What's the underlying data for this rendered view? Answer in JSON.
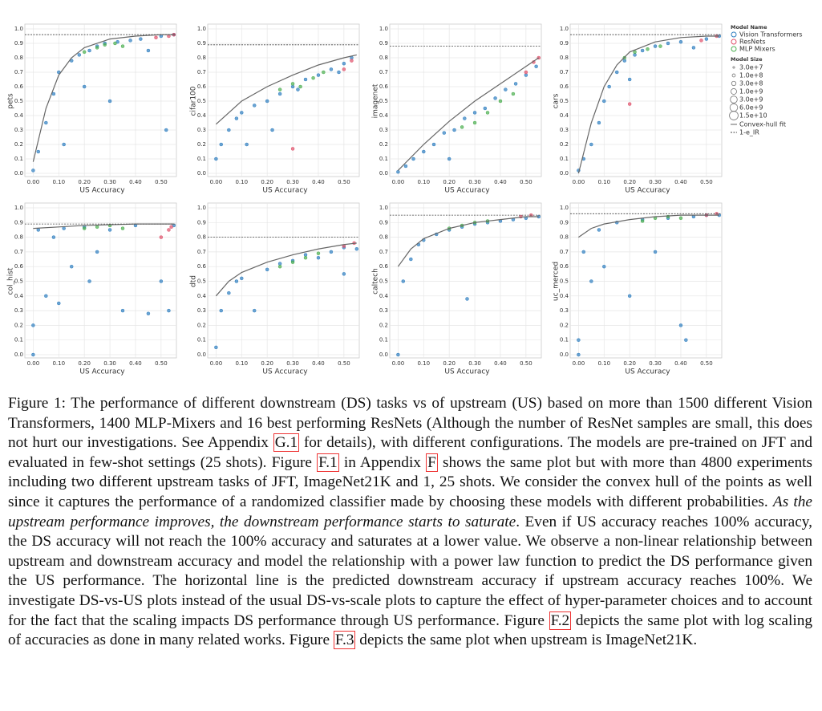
{
  "axes": {
    "x_label": "US Accuracy",
    "xlim": [
      -0.02,
      0.56
    ],
    "ylim": [
      0,
      1
    ],
    "xticks": [
      {
        "value": 0,
        "label": "0.00"
      },
      {
        "value": 0.1,
        "label": "0.10"
      },
      {
        "value": 0.2,
        "label": "0.20"
      },
      {
        "value": 0.3,
        "label": "0.30"
      },
      {
        "value": 0.4,
        "label": "0.40"
      },
      {
        "value": 0.5,
        "label": "0.50"
      }
    ],
    "yticks": [
      {
        "value": 0,
        "label": "0.0"
      },
      0.1,
      0.2,
      0.3,
      0.4,
      0.5,
      0.6,
      0.7,
      0.8,
      0.9,
      {
        "value": 1,
        "label": "1.0"
      }
    ],
    "grid": true
  },
  "legend": {
    "title": "Model Name",
    "series": [
      {
        "name": "Vision Transformers",
        "color": "#2f7fc1"
      },
      {
        "name": "ResNets",
        "color": "#e0506a"
      },
      {
        "name": "MLP Mixers",
        "color": "#4caf50"
      }
    ],
    "size_title": "Model Size",
    "sizes": [
      {
        "value": 30000000,
        "label": "3.0e+7"
      },
      {
        "value": 100000000,
        "label": "1.0e+8"
      },
      {
        "value": 300000000,
        "label": "3.0e+8"
      },
      {
        "value": 1000000000,
        "label": "1.0e+9"
      },
      {
        "value": 3000000000,
        "label": "3.0e+9"
      },
      {
        "value": 6000000000,
        "label": "6.0e+9"
      },
      {
        "value": 15000000000,
        "label": "1.5e+10"
      }
    ],
    "fit_label": "Convex-hull fit",
    "hline_label": "1-e_IR"
  },
  "chart_data": [
    {
      "type": "scatter",
      "y_label": "pets",
      "saturation": 0.96,
      "fit": {
        "x": [
          0,
          0.05,
          0.1,
          0.15,
          0.2,
          0.3,
          0.4,
          0.5,
          0.55
        ],
        "values": [
          0.08,
          0.45,
          0.68,
          0.8,
          0.87,
          0.93,
          0.95,
          0.96,
          0.96
        ]
      },
      "series": [
        {
          "x": [
            0,
            0.02,
            0.05,
            0.08,
            0.1,
            0.12,
            0.15,
            0.18,
            0.2,
            0.22,
            0.25,
            0.28,
            0.3,
            0.33,
            0.38,
            0.42,
            0.45,
            0.5,
            0.52,
            0.55
          ],
          "values": [
            0.02,
            0.15,
            0.35,
            0.55,
            0.7,
            0.2,
            0.78,
            0.82,
            0.6,
            0.85,
            0.88,
            0.9,
            0.5,
            0.91,
            0.92,
            0.93,
            0.85,
            0.95,
            0.3,
            0.96
          ]
        },
        {
          "x": [
            0.48,
            0.53,
            0.55
          ],
          "values": [
            0.94,
            0.95,
            0.96
          ]
        },
        {
          "x": [
            0.2,
            0.25,
            0.28,
            0.32,
            0.35
          ],
          "values": [
            0.84,
            0.87,
            0.89,
            0.9,
            0.88
          ]
        }
      ]
    },
    {
      "type": "scatter",
      "y_label": "cifar100",
      "saturation": 0.89,
      "fit": {
        "x": [
          0,
          0.05,
          0.1,
          0.2,
          0.3,
          0.4,
          0.5,
          0.55
        ],
        "values": [
          0.34,
          0.42,
          0.5,
          0.6,
          0.68,
          0.75,
          0.8,
          0.82
        ]
      },
      "series": [
        {
          "x": [
            0,
            0.02,
            0.05,
            0.08,
            0.1,
            0.12,
            0.15,
            0.2,
            0.22,
            0.25,
            0.3,
            0.32,
            0.35,
            0.4,
            0.45,
            0.48,
            0.5,
            0.53
          ],
          "values": [
            0.1,
            0.2,
            0.3,
            0.38,
            0.42,
            0.2,
            0.47,
            0.5,
            0.3,
            0.55,
            0.6,
            0.58,
            0.65,
            0.68,
            0.72,
            0.7,
            0.76,
            0.8
          ]
        },
        {
          "x": [
            0.3,
            0.5,
            0.53
          ],
          "values": [
            0.17,
            0.72,
            0.78
          ]
        },
        {
          "x": [
            0.25,
            0.3,
            0.33,
            0.38,
            0.42
          ],
          "values": [
            0.58,
            0.62,
            0.6,
            0.66,
            0.7
          ]
        }
      ]
    },
    {
      "type": "scatter",
      "y_label": "imagenet",
      "saturation": 0.88,
      "fit": {
        "x": [
          0,
          0.1,
          0.2,
          0.3,
          0.4,
          0.5,
          0.55
        ],
        "values": [
          0.02,
          0.2,
          0.36,
          0.5,
          0.62,
          0.74,
          0.8
        ]
      },
      "series": [
        {
          "x": [
            0,
            0.03,
            0.06,
            0.1,
            0.14,
            0.18,
            0.22,
            0.26,
            0.3,
            0.34,
            0.38,
            0.42,
            0.46,
            0.5,
            0.54,
            0.2
          ],
          "values": [
            0.01,
            0.05,
            0.1,
            0.15,
            0.2,
            0.28,
            0.3,
            0.38,
            0.42,
            0.45,
            0.52,
            0.58,
            0.62,
            0.68,
            0.74,
            0.1
          ]
        },
        {
          "x": [
            0.5,
            0.53,
            0.55
          ],
          "values": [
            0.7,
            0.77,
            0.8
          ]
        },
        {
          "x": [
            0.25,
            0.3,
            0.35,
            0.4,
            0.45
          ],
          "values": [
            0.32,
            0.35,
            0.42,
            0.5,
            0.55
          ]
        }
      ]
    },
    {
      "type": "scatter",
      "y_label": "cars",
      "saturation": 0.96,
      "fit": {
        "x": [
          0,
          0.05,
          0.1,
          0.15,
          0.2,
          0.3,
          0.4,
          0.5,
          0.55
        ],
        "values": [
          0,
          0.35,
          0.6,
          0.75,
          0.84,
          0.91,
          0.94,
          0.95,
          0.95
        ]
      },
      "series": [
        {
          "x": [
            0,
            0.02,
            0.05,
            0.08,
            0.1,
            0.12,
            0.15,
            0.18,
            0.2,
            0.22,
            0.25,
            0.3,
            0.35,
            0.4,
            0.45,
            0.5,
            0.55
          ],
          "values": [
            0.02,
            0.1,
            0.2,
            0.35,
            0.5,
            0.6,
            0.7,
            0.78,
            0.65,
            0.82,
            0.85,
            0.88,
            0.9,
            0.91,
            0.87,
            0.93,
            0.95
          ]
        },
        {
          "x": [
            0.2,
            0.48,
            0.54
          ],
          "values": [
            0.48,
            0.92,
            0.95
          ]
        },
        {
          "x": [
            0.18,
            0.22,
            0.27,
            0.32
          ],
          "values": [
            0.8,
            0.84,
            0.86,
            0.88
          ]
        }
      ]
    },
    {
      "type": "scatter",
      "y_label": "col_hist",
      "saturation": 0.89,
      "fit": {
        "x": [
          0,
          0.1,
          0.2,
          0.3,
          0.4,
          0.5,
          0.55
        ],
        "values": [
          0.86,
          0.87,
          0.88,
          0.885,
          0.89,
          0.89,
          0.89
        ]
      },
      "series": [
        {
          "x": [
            0,
            0,
            0.02,
            0.05,
            0.08,
            0.1,
            0.12,
            0.15,
            0.2,
            0.22,
            0.25,
            0.3,
            0.35,
            0.4,
            0.45,
            0.5,
            0.53,
            0.55
          ],
          "values": [
            0,
            0.2,
            0.85,
            0.4,
            0.8,
            0.35,
            0.86,
            0.6,
            0.87,
            0.5,
            0.7,
            0.85,
            0.3,
            0.88,
            0.28,
            0.5,
            0.3,
            0.88
          ]
        },
        {
          "x": [
            0.5,
            0.53,
            0.54
          ],
          "values": [
            0.8,
            0.85,
            0.87
          ]
        },
        {
          "x": [
            0.2,
            0.25,
            0.3,
            0.35
          ],
          "values": [
            0.86,
            0.87,
            0.88,
            0.86
          ]
        }
      ]
    },
    {
      "type": "scatter",
      "y_label": "dtd",
      "saturation": 0.8,
      "fit": {
        "x": [
          0,
          0.05,
          0.1,
          0.2,
          0.3,
          0.4,
          0.5,
          0.55
        ],
        "values": [
          0.4,
          0.5,
          0.56,
          0.63,
          0.68,
          0.72,
          0.75,
          0.76
        ]
      },
      "series": [
        {
          "x": [
            0,
            0.02,
            0.05,
            0.08,
            0.1,
            0.15,
            0.2,
            0.25,
            0.3,
            0.35,
            0.4,
            0.45,
            0.5,
            0.55,
            0.5
          ],
          "values": [
            0.05,
            0.3,
            0.42,
            0.5,
            0.52,
            0.3,
            0.58,
            0.62,
            0.64,
            0.68,
            0.66,
            0.7,
            0.73,
            0.72,
            0.55
          ]
        },
        {
          "x": [
            0.5,
            0.54
          ],
          "values": [
            0.74,
            0.76
          ]
        },
        {
          "x": [
            0.25,
            0.3,
            0.35,
            0.4
          ],
          "values": [
            0.6,
            0.63,
            0.66,
            0.69
          ]
        }
      ]
    },
    {
      "type": "scatter",
      "y_label": "caltech",
      "saturation": 0.95,
      "fit": {
        "x": [
          0,
          0.05,
          0.1,
          0.2,
          0.3,
          0.4,
          0.5,
          0.55
        ],
        "values": [
          0.6,
          0.72,
          0.79,
          0.86,
          0.9,
          0.92,
          0.94,
          0.94
        ]
      },
      "series": [
        {
          "x": [
            0,
            0.02,
            0.05,
            0.08,
            0.1,
            0.15,
            0.2,
            0.25,
            0.27,
            0.3,
            0.35,
            0.4,
            0.45,
            0.5,
            0.55
          ],
          "values": [
            0,
            0.5,
            0.65,
            0.75,
            0.78,
            0.82,
            0.85,
            0.87,
            0.38,
            0.89,
            0.9,
            0.91,
            0.92,
            0.93,
            0.94
          ]
        },
        {
          "x": [
            0.48,
            0.52
          ],
          "values": [
            0.94,
            0.95
          ]
        },
        {
          "x": [
            0.2,
            0.25,
            0.3,
            0.35
          ],
          "values": [
            0.86,
            0.88,
            0.9,
            0.91
          ]
        }
      ]
    },
    {
      "type": "scatter",
      "y_label": "uc_merced",
      "saturation": 0.96,
      "fit": {
        "x": [
          0,
          0.05,
          0.1,
          0.2,
          0.3,
          0.4,
          0.5,
          0.55
        ],
        "values": [
          0.8,
          0.86,
          0.89,
          0.92,
          0.94,
          0.95,
          0.95,
          0.95
        ]
      },
      "series": [
        {
          "x": [
            0,
            0,
            0.02,
            0.05,
            0.08,
            0.1,
            0.15,
            0.2,
            0.25,
            0.3,
            0.35,
            0.4,
            0.42,
            0.45,
            0.5,
            0.55
          ],
          "values": [
            0,
            0.1,
            0.7,
            0.5,
            0.85,
            0.6,
            0.9,
            0.4,
            0.92,
            0.7,
            0.93,
            0.2,
            0.1,
            0.94,
            0.95,
            0.95
          ]
        },
        {
          "x": [
            0.5,
            0.54
          ],
          "values": [
            0.95,
            0.96
          ]
        },
        {
          "x": [
            0.25,
            0.3,
            0.35,
            0.4
          ],
          "values": [
            0.91,
            0.93,
            0.94,
            0.93
          ]
        }
      ]
    }
  ],
  "caption": {
    "label": "Figure 1:",
    "parts": [
      {
        "text": " The performance of different downstream (DS) tasks vs of upstream (US) based on more than 1500 different Vision Transformers, 1400 MLP-Mixers and 16 best performing ResNets (Although the number of ResNet samples are small, this does not hurt our investigations. See Appendix ",
        "style": "plain"
      },
      {
        "text": "G.1",
        "style": "ref"
      },
      {
        "text": " for details), with different configurations. The models are pre-trained on JFT and evaluated in few-shot settings (25 shots). Figure ",
        "style": "plain"
      },
      {
        "text": "F.1",
        "style": "ref"
      },
      {
        "text": " in Appendix ",
        "style": "plain"
      },
      {
        "text": "F",
        "style": "ref"
      },
      {
        "text": " shows the same plot but with more than 4800 experiments including two different upstream tasks of JFT, ImageNet21K and 1, 25 shots. We consider the convex hull of the points as well since it captures the performance of a randomized classifier made by choosing these models with different probabilities. ",
        "style": "plain"
      },
      {
        "text": "As the upstream performance improves, the downstream performance starts to saturate",
        "style": "italic"
      },
      {
        "text": ". Even if US accuracy reaches 100% accuracy, the DS accuracy will not reach the 100% accuracy and saturates at a lower value. We observe a non-linear relationship between upstream and downstream accuracy and model the relationship with a power law function to predict the DS performance given the US performance. The horizontal line is the predicted downstream accuracy if upstream accuracy reaches 100%. We investigate DS-vs-US plots instead of the usual DS-vs-scale plots to capture the effect of hyper-parameter choices and to account for the fact that the scaling impacts DS performance through US performance. Figure ",
        "style": "plain"
      },
      {
        "text": "F.2",
        "style": "ref"
      },
      {
        "text": " depicts the same plot with log scaling of accuracies as done in many related works. Figure ",
        "style": "plain"
      },
      {
        "text": "F.3",
        "style": "ref"
      },
      {
        "text": " depicts the same plot when upstream is ImageNet21K.",
        "style": "plain"
      }
    ]
  }
}
